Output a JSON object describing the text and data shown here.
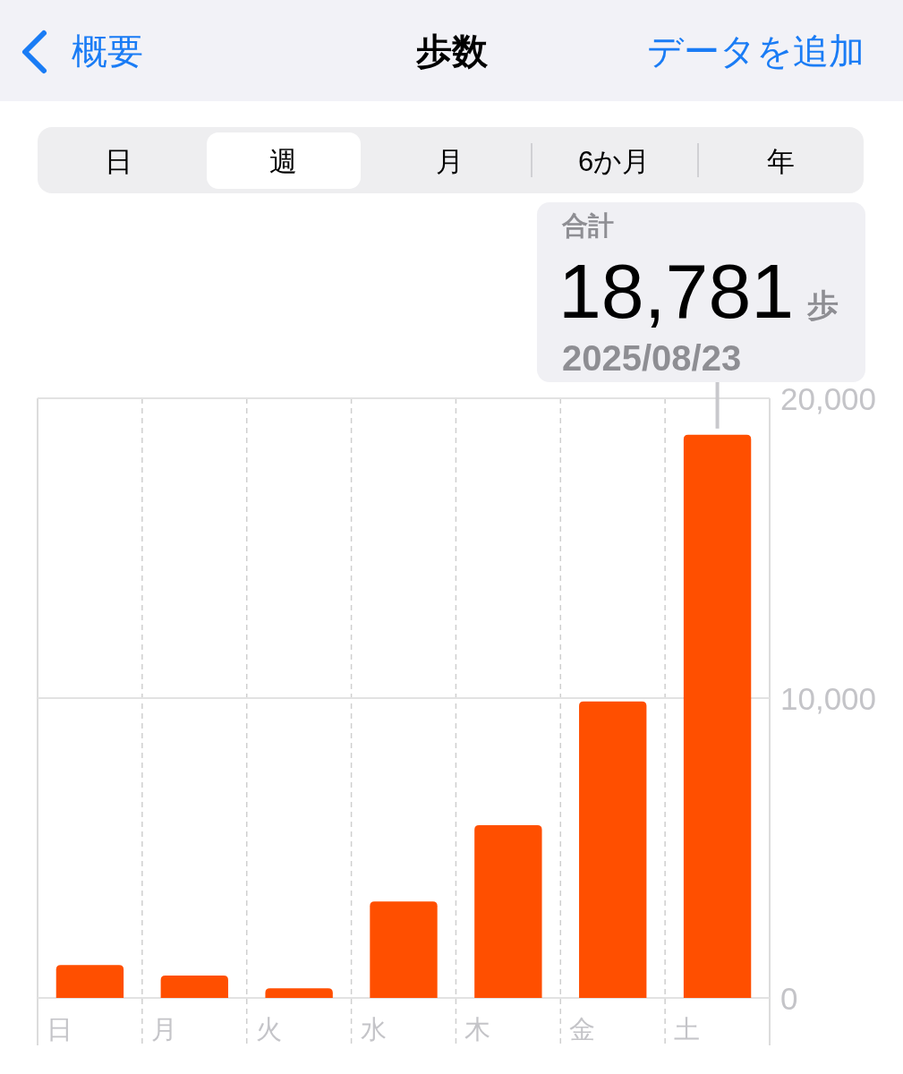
{
  "chart_data": {
    "type": "bar",
    "title": "歩数",
    "categories": [
      "日",
      "月",
      "火",
      "水",
      "木",
      "金",
      "土"
    ],
    "values": [
      1100,
      750,
      320,
      3220,
      5760,
      9890,
      18781
    ],
    "color": "#ff4f00",
    "ylim": [
      0,
      20000
    ],
    "yticks": [
      0,
      {
        "value": 10000,
        "label": "10,000"
      },
      {
        "value": 20000,
        "label": "20,000"
      }
    ],
    "grid": true,
    "annotations": [
      "概要",
      "データを追加",
      "日",
      "週",
      "月",
      "6か月",
      "年",
      "合計",
      {
        "text": "18,781",
        "x": "土",
        "y": 18781
      },
      "歩",
      "2025/08/23"
    ]
  }
}
